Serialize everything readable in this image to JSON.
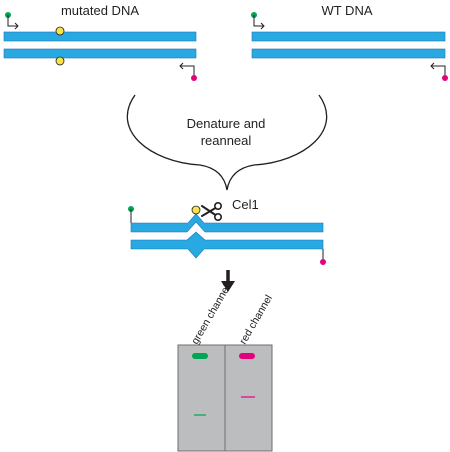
{
  "labels": {
    "mutated": "mutated DNA",
    "wt": "WT DNA",
    "process_line1": "Denature and",
    "process_line2": "reanneal",
    "enzyme": "Cel1",
    "green_channel": "green channel",
    "red_channel": "red channel"
  },
  "colors": {
    "dna": "#29a9e1",
    "dna_outline": "#1b75bb",
    "mutation": "#f7e24a",
    "green": "#00a651",
    "magenta": "#e6007e",
    "gel": "#bcbdbf",
    "gel_border": "#6d6e71"
  },
  "icons": {
    "scissors": "scissors-icon",
    "arrow": "arrow-down-icon"
  }
}
